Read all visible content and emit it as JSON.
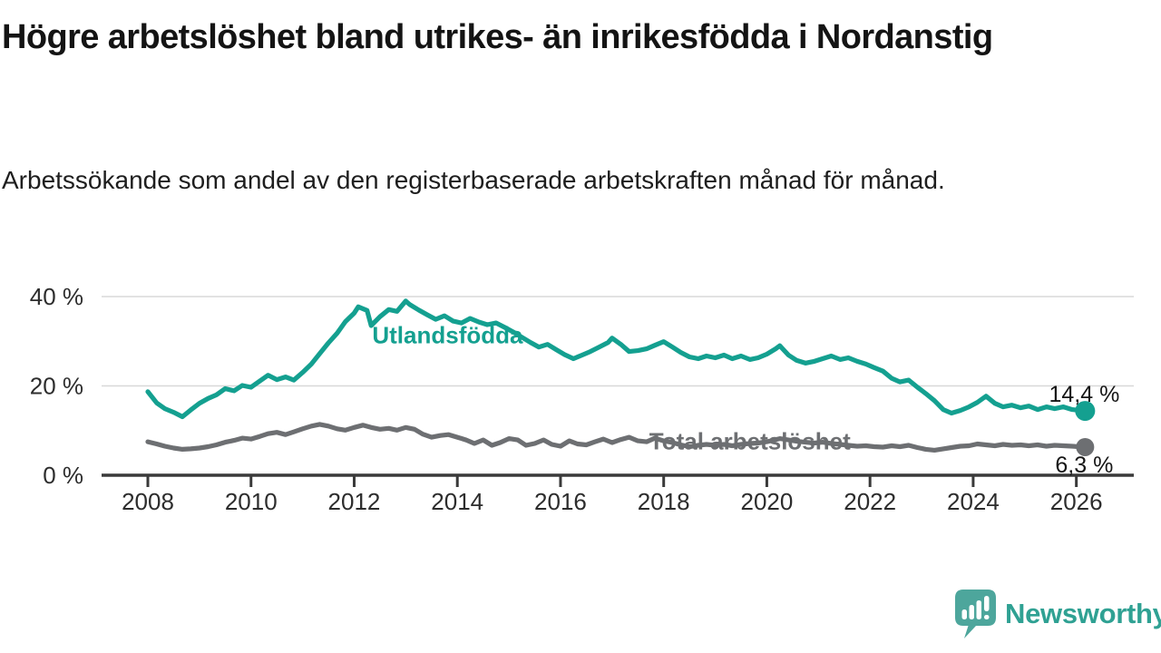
{
  "header": {
    "title": "Högre arbetslöshet bland utrikes- än inrikesfödda i Nordanstig",
    "subtitle": "Arbetssökande som andel av den registerbaserade arbetskraften månad för månad."
  },
  "footer": {
    "brand": "Newsworthy",
    "logo_icon": "newsworthy-speech-bubble-bar-chart-icon"
  },
  "colors": {
    "series_foreign_born": "#14a090",
    "series_total": "#6d6f72",
    "gridline": "#d8d8d8",
    "axis": "#3a3a3a",
    "tick_text": "#2d2d2d",
    "value_text": "#161616",
    "brand_bubble": "#4da69c",
    "brand_text": "#2fa193",
    "background": "#ffffff"
  },
  "chart_data": {
    "type": "line",
    "title": "Högre arbetslöshet bland utrikes- än inrikesfödda i Nordanstig",
    "subtitle": "Arbetssökande som andel av den registerbaserade arbetskraften månad för månad.",
    "grid": "horizontal-only",
    "legend_position": "inline-labels",
    "x_axis": {
      "range": [
        2007.6,
        2027.1
      ],
      "ticks": [
        {
          "value": 2008,
          "label": "2008"
        },
        {
          "value": 2010,
          "label": "2010"
        },
        {
          "value": 2012,
          "label": "2012"
        },
        {
          "value": 2014,
          "label": "2014"
        },
        {
          "value": 2016,
          "label": "2016"
        },
        {
          "value": 2018,
          "label": "2018"
        },
        {
          "value": 2020,
          "label": "2020"
        },
        {
          "value": 2022,
          "label": "2022"
        },
        {
          "value": 2024,
          "label": "2024"
        },
        {
          "value": 2026,
          "label": "2026"
        }
      ]
    },
    "y_axis": {
      "range": [
        0,
        43
      ],
      "unit": "%",
      "ticks": [
        {
          "value": 0,
          "label": "0 %"
        },
        {
          "value": 20,
          "label": "20 %"
        },
        {
          "value": 40,
          "label": "40 %"
        }
      ]
    },
    "series": [
      {
        "name": "Utlandsfödda",
        "color": "#14a090",
        "end_label": "14,4 %",
        "end_value": 14.4,
        "label_anchor": {
          "year": 2012.35,
          "pct": 29.5
        },
        "points": [
          [
            2008.0,
            18.7
          ],
          [
            2008.17,
            16.2
          ],
          [
            2008.33,
            14.9
          ],
          [
            2008.5,
            14.1
          ],
          [
            2008.67,
            13.1
          ],
          [
            2008.83,
            14.6
          ],
          [
            2009.0,
            16.1
          ],
          [
            2009.17,
            17.2
          ],
          [
            2009.33,
            18.0
          ],
          [
            2009.5,
            19.4
          ],
          [
            2009.67,
            18.9
          ],
          [
            2009.83,
            20.1
          ],
          [
            2010.0,
            19.7
          ],
          [
            2010.17,
            21.1
          ],
          [
            2010.33,
            22.4
          ],
          [
            2010.5,
            21.4
          ],
          [
            2010.67,
            22.0
          ],
          [
            2010.83,
            21.3
          ],
          [
            2011.0,
            23.0
          ],
          [
            2011.17,
            24.9
          ],
          [
            2011.33,
            27.2
          ],
          [
            2011.5,
            29.6
          ],
          [
            2011.67,
            31.8
          ],
          [
            2011.83,
            34.4
          ],
          [
            2012.0,
            36.3
          ],
          [
            2012.08,
            37.7
          ],
          [
            2012.25,
            36.9
          ],
          [
            2012.33,
            33.5
          ],
          [
            2012.5,
            35.5
          ],
          [
            2012.67,
            37.1
          ],
          [
            2012.83,
            36.7
          ],
          [
            2013.0,
            39.0
          ],
          [
            2013.08,
            38.2
          ],
          [
            2013.25,
            37.0
          ],
          [
            2013.42,
            35.9
          ],
          [
            2013.58,
            34.9
          ],
          [
            2013.75,
            35.7
          ],
          [
            2013.92,
            34.5
          ],
          [
            2014.08,
            34.1
          ],
          [
            2014.25,
            35.1
          ],
          [
            2014.42,
            34.3
          ],
          [
            2014.58,
            33.7
          ],
          [
            2014.75,
            34.1
          ],
          [
            2014.92,
            33.1
          ],
          [
            2015.08,
            32.1
          ],
          [
            2015.25,
            30.9
          ],
          [
            2015.42,
            29.7
          ],
          [
            2015.58,
            28.7
          ],
          [
            2015.75,
            29.3
          ],
          [
            2015.92,
            28.1
          ],
          [
            2016.08,
            27.0
          ],
          [
            2016.25,
            26.1
          ],
          [
            2016.42,
            26.9
          ],
          [
            2016.58,
            27.7
          ],
          [
            2016.75,
            28.7
          ],
          [
            2016.92,
            29.7
          ],
          [
            2017.0,
            30.7
          ],
          [
            2017.17,
            29.3
          ],
          [
            2017.33,
            27.7
          ],
          [
            2017.5,
            27.9
          ],
          [
            2017.67,
            28.3
          ],
          [
            2017.83,
            29.1
          ],
          [
            2018.0,
            29.9
          ],
          [
            2018.17,
            28.7
          ],
          [
            2018.33,
            27.5
          ],
          [
            2018.5,
            26.5
          ],
          [
            2018.67,
            26.1
          ],
          [
            2018.83,
            26.7
          ],
          [
            2019.0,
            26.3
          ],
          [
            2019.17,
            26.9
          ],
          [
            2019.33,
            26.1
          ],
          [
            2019.5,
            26.7
          ],
          [
            2019.67,
            25.9
          ],
          [
            2019.83,
            26.3
          ],
          [
            2020.0,
            27.1
          ],
          [
            2020.17,
            28.3
          ],
          [
            2020.25,
            29.0
          ],
          [
            2020.42,
            26.9
          ],
          [
            2020.58,
            25.7
          ],
          [
            2020.75,
            25.1
          ],
          [
            2020.92,
            25.5
          ],
          [
            2021.08,
            26.1
          ],
          [
            2021.25,
            26.7
          ],
          [
            2021.42,
            25.9
          ],
          [
            2021.58,
            26.3
          ],
          [
            2021.75,
            25.5
          ],
          [
            2021.92,
            24.9
          ],
          [
            2022.08,
            24.1
          ],
          [
            2022.25,
            23.3
          ],
          [
            2022.42,
            21.7
          ],
          [
            2022.58,
            20.9
          ],
          [
            2022.75,
            21.3
          ],
          [
            2022.92,
            19.7
          ],
          [
            2023.08,
            18.3
          ],
          [
            2023.25,
            16.7
          ],
          [
            2023.42,
            14.7
          ],
          [
            2023.58,
            13.9
          ],
          [
            2023.75,
            14.5
          ],
          [
            2023.92,
            15.3
          ],
          [
            2024.08,
            16.3
          ],
          [
            2024.25,
            17.7
          ],
          [
            2024.42,
            16.1
          ],
          [
            2024.58,
            15.3
          ],
          [
            2024.75,
            15.7
          ],
          [
            2024.92,
            15.1
          ],
          [
            2025.08,
            15.5
          ],
          [
            2025.25,
            14.7
          ],
          [
            2025.42,
            15.3
          ],
          [
            2025.58,
            14.9
          ],
          [
            2025.75,
            15.3
          ],
          [
            2025.92,
            14.7
          ],
          [
            2026.17,
            14.4
          ]
        ]
      },
      {
        "name": "Total arbetslöshet",
        "color": "#6d6f72",
        "end_label": "6,3 %",
        "end_value": 6.3,
        "label_anchor": {
          "year": 2017.72,
          "pct": 5.8
        },
        "points": [
          [
            2008.0,
            7.5
          ],
          [
            2008.17,
            7.0
          ],
          [
            2008.33,
            6.5
          ],
          [
            2008.5,
            6.1
          ],
          [
            2008.67,
            5.8
          ],
          [
            2008.83,
            5.9
          ],
          [
            2009.0,
            6.1
          ],
          [
            2009.17,
            6.4
          ],
          [
            2009.33,
            6.8
          ],
          [
            2009.5,
            7.4
          ],
          [
            2009.67,
            7.8
          ],
          [
            2009.83,
            8.3
          ],
          [
            2010.0,
            8.1
          ],
          [
            2010.17,
            8.7
          ],
          [
            2010.33,
            9.3
          ],
          [
            2010.5,
            9.6
          ],
          [
            2010.67,
            9.1
          ],
          [
            2010.83,
            9.7
          ],
          [
            2011.0,
            10.4
          ],
          [
            2011.17,
            11.0
          ],
          [
            2011.33,
            11.4
          ],
          [
            2011.5,
            11.0
          ],
          [
            2011.67,
            10.4
          ],
          [
            2011.83,
            10.1
          ],
          [
            2012.0,
            10.7
          ],
          [
            2012.17,
            11.2
          ],
          [
            2012.33,
            10.7
          ],
          [
            2012.5,
            10.3
          ],
          [
            2012.67,
            10.5
          ],
          [
            2012.83,
            10.1
          ],
          [
            2013.0,
            10.7
          ],
          [
            2013.17,
            10.3
          ],
          [
            2013.33,
            9.2
          ],
          [
            2013.5,
            8.5
          ],
          [
            2013.67,
            8.9
          ],
          [
            2013.83,
            9.1
          ],
          [
            2014.0,
            8.5
          ],
          [
            2014.17,
            7.9
          ],
          [
            2014.33,
            7.1
          ],
          [
            2014.5,
            7.9
          ],
          [
            2014.67,
            6.7
          ],
          [
            2014.83,
            7.3
          ],
          [
            2015.0,
            8.2
          ],
          [
            2015.17,
            7.9
          ],
          [
            2015.33,
            6.7
          ],
          [
            2015.5,
            7.1
          ],
          [
            2015.67,
            7.9
          ],
          [
            2015.83,
            6.9
          ],
          [
            2016.0,
            6.5
          ],
          [
            2016.17,
            7.7
          ],
          [
            2016.33,
            7.0
          ],
          [
            2016.5,
            6.8
          ],
          [
            2016.67,
            7.5
          ],
          [
            2016.83,
            8.1
          ],
          [
            2017.0,
            7.3
          ],
          [
            2017.17,
            8.0
          ],
          [
            2017.33,
            8.5
          ],
          [
            2017.5,
            7.7
          ],
          [
            2017.67,
            7.5
          ],
          [
            2017.83,
            8.3
          ],
          [
            2018.0,
            7.7
          ],
          [
            2018.17,
            7.3
          ],
          [
            2018.33,
            6.8
          ],
          [
            2018.5,
            6.4
          ],
          [
            2018.67,
            6.7
          ],
          [
            2018.83,
            6.9
          ],
          [
            2019.0,
            6.7
          ],
          [
            2019.17,
            6.9
          ],
          [
            2019.33,
            6.6
          ],
          [
            2019.5,
            6.9
          ],
          [
            2019.67,
            7.1
          ],
          [
            2019.83,
            7.2
          ],
          [
            2020.0,
            7.5
          ],
          [
            2020.25,
            8.2
          ],
          [
            2020.42,
            7.9
          ],
          [
            2020.58,
            7.6
          ],
          [
            2020.75,
            7.4
          ],
          [
            2020.92,
            7.2
          ],
          [
            2021.08,
            7.4
          ],
          [
            2021.25,
            7.1
          ],
          [
            2021.42,
            6.9
          ],
          [
            2021.58,
            6.7
          ],
          [
            2021.75,
            6.5
          ],
          [
            2021.92,
            6.6
          ],
          [
            2022.08,
            6.4
          ],
          [
            2022.25,
            6.3
          ],
          [
            2022.42,
            6.6
          ],
          [
            2022.58,
            6.4
          ],
          [
            2022.75,
            6.7
          ],
          [
            2022.92,
            6.2
          ],
          [
            2023.08,
            5.8
          ],
          [
            2023.25,
            5.6
          ],
          [
            2023.42,
            5.9
          ],
          [
            2023.58,
            6.2
          ],
          [
            2023.75,
            6.5
          ],
          [
            2023.92,
            6.6
          ],
          [
            2024.08,
            7.0
          ],
          [
            2024.25,
            6.8
          ],
          [
            2024.42,
            6.6
          ],
          [
            2024.58,
            6.9
          ],
          [
            2024.75,
            6.7
          ],
          [
            2024.92,
            6.8
          ],
          [
            2025.08,
            6.6
          ],
          [
            2025.25,
            6.8
          ],
          [
            2025.42,
            6.5
          ],
          [
            2025.58,
            6.7
          ],
          [
            2025.75,
            6.6
          ],
          [
            2025.92,
            6.5
          ],
          [
            2026.17,
            6.3
          ]
        ]
      }
    ]
  }
}
